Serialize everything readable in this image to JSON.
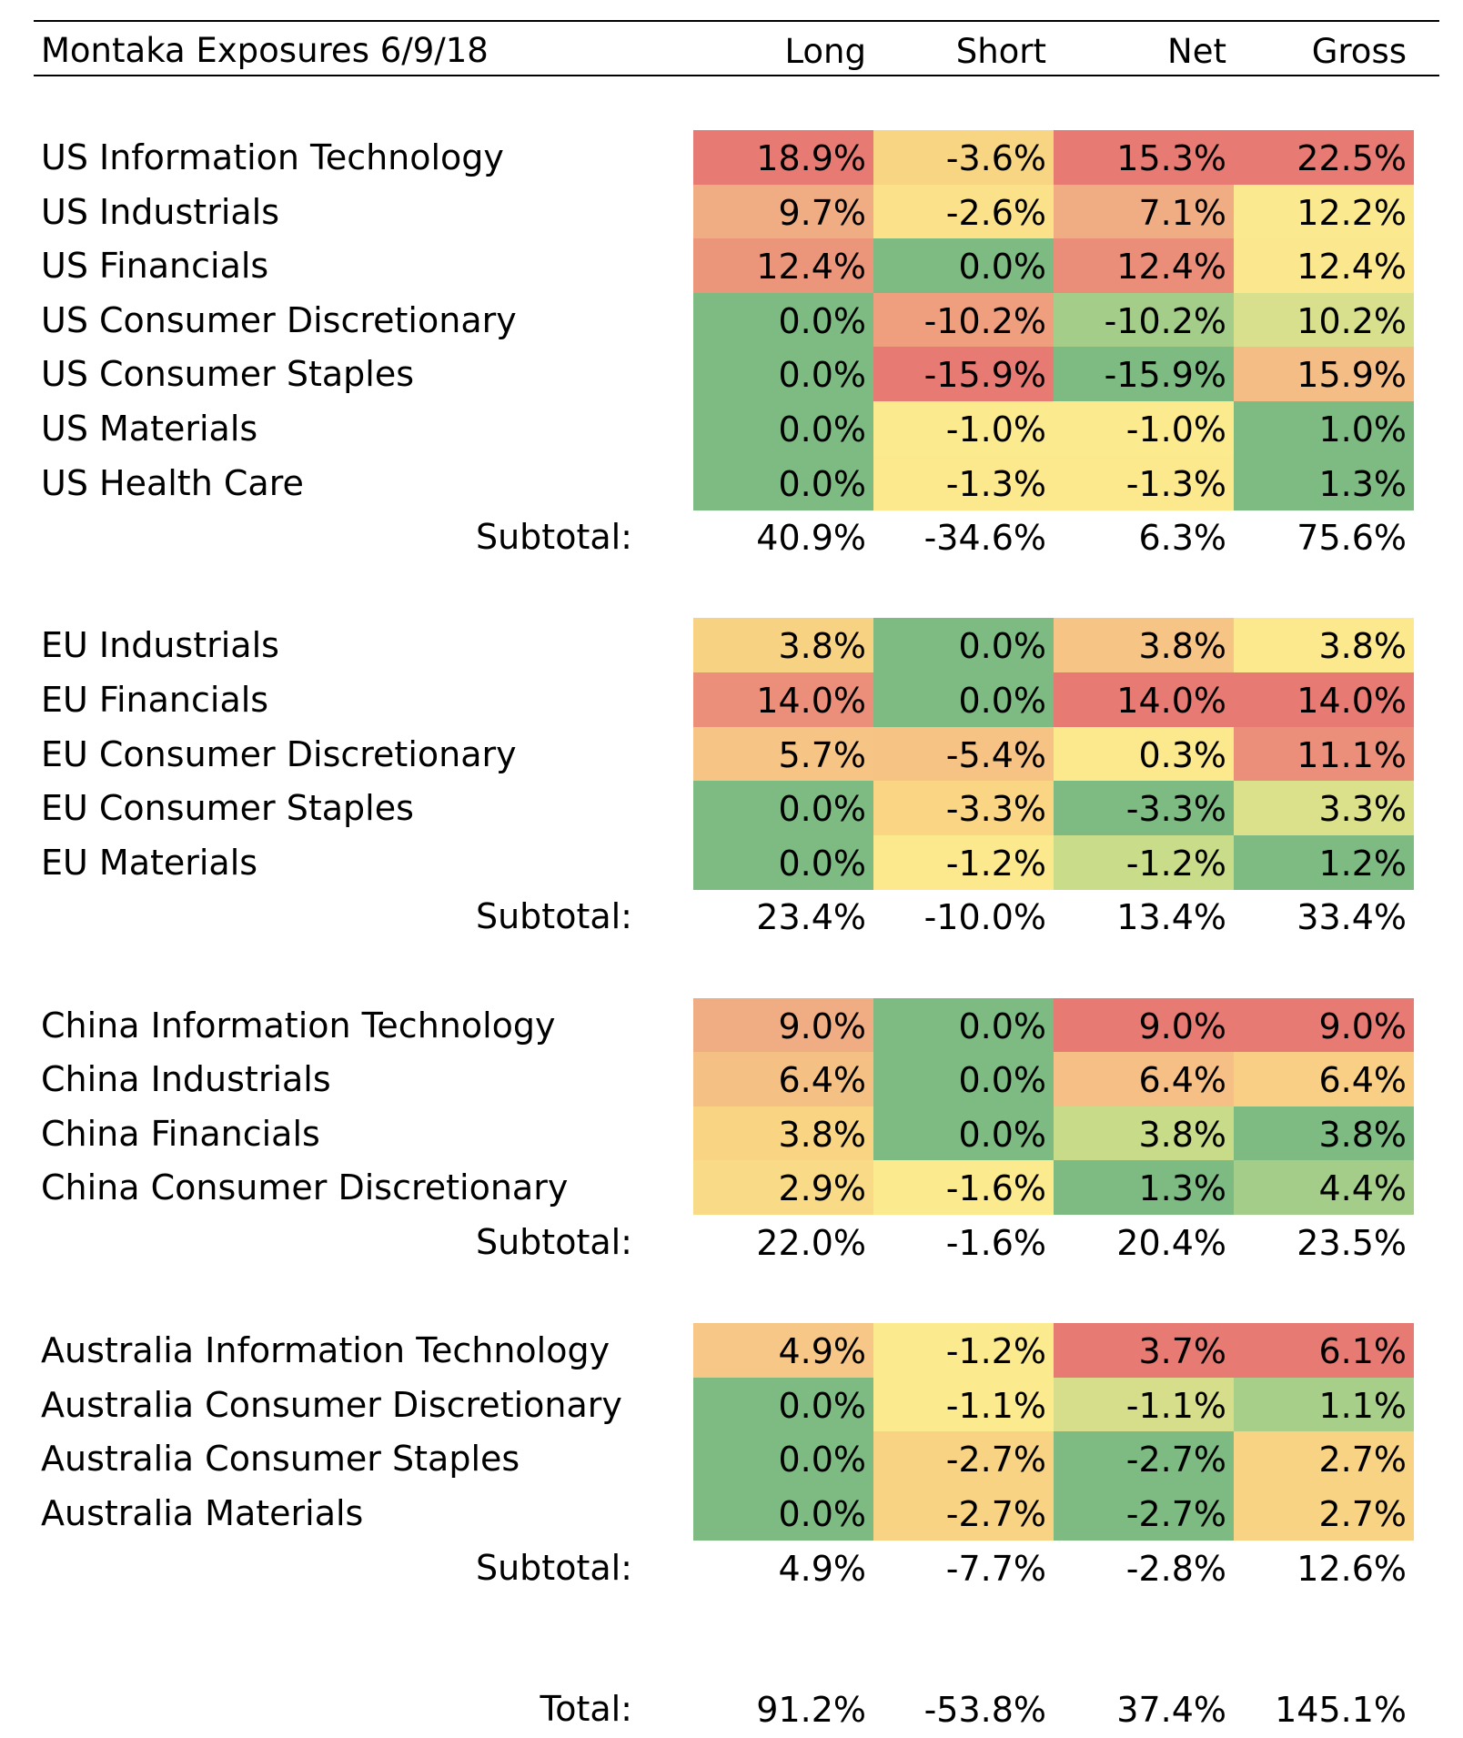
{
  "header": {
    "title": "Montaka Exposures 6/9/18",
    "columns": [
      "Long",
      "Short",
      "Net",
      "Gross"
    ]
  },
  "sections": [
    {
      "rows": [
        {
          "label": "US Information Technology",
          "values": [
            "18.9%",
            "-3.6%",
            "15.3%",
            "22.5%"
          ],
          "colors": [
            "#e77b74",
            "#f8d583",
            "#e77b74",
            "#e77b74"
          ]
        },
        {
          "label": "US Industrials",
          "values": [
            "9.7%",
            "-2.6%",
            "7.1%",
            "12.2%"
          ],
          "colors": [
            "#f0ad83",
            "#fbe28a",
            "#f0ad83",
            "#fbe98f"
          ]
        },
        {
          "label": "US Financials",
          "values": [
            "12.4%",
            "0.0%",
            "12.4%",
            "12.4%"
          ],
          "colors": [
            "#eb957b",
            "#7dbb82",
            "#ea8e7a",
            "#fbe88e"
          ]
        },
        {
          "label": "US Consumer Discretionary",
          "values": [
            "0.0%",
            "-10.2%",
            "-10.2%",
            "10.2%"
          ],
          "colors": [
            "#7dbb82",
            "#ef9f7e",
            "#a3cd89",
            "#d9e08d"
          ]
        },
        {
          "label": "US Consumer Staples",
          "values": [
            "0.0%",
            "-15.9%",
            "-15.9%",
            "15.9%"
          ],
          "colors": [
            "#7dbb82",
            "#e77b74",
            "#7dbb82",
            "#f5bd86"
          ]
        },
        {
          "label": "US Materials",
          "values": [
            "0.0%",
            "-1.0%",
            "-1.0%",
            "1.0%"
          ],
          "colors": [
            "#7dbb82",
            "#fcea8e",
            "#fcea8e",
            "#7dbb82"
          ]
        },
        {
          "label": "US Health Care",
          "values": [
            "0.0%",
            "-1.3%",
            "-1.3%",
            "1.3%"
          ],
          "colors": [
            "#7dbb82",
            "#fce88d",
            "#fce88d",
            "#7dbb82"
          ]
        }
      ],
      "subtotal": {
        "label": "Subtotal:",
        "values": [
          "40.9%",
          "-34.6%",
          "6.3%",
          "75.6%"
        ]
      }
    },
    {
      "rows": [
        {
          "label": "EU Industrials",
          "values": [
            "3.8%",
            "0.0%",
            "3.8%",
            "3.8%"
          ],
          "colors": [
            "#f8d283",
            "#7dbb82",
            "#f6c585",
            "#fce88d"
          ]
        },
        {
          "label": "EU Financials",
          "values": [
            "14.0%",
            "0.0%",
            "14.0%",
            "14.0%"
          ],
          "colors": [
            "#eb8e7a",
            "#7dbb82",
            "#e77b74",
            "#e77b74"
          ]
        },
        {
          "label": "EU Consumer Discretionary",
          "values": [
            "5.7%",
            "-5.4%",
            "0.3%",
            "11.1%"
          ],
          "colors": [
            "#f6c485",
            "#f6c385",
            "#fce98e",
            "#eb8f7a"
          ]
        },
        {
          "label": "EU Consumer Staples",
          "values": [
            "0.0%",
            "-3.3%",
            "-3.3%",
            "3.3%"
          ],
          "colors": [
            "#7dbb82",
            "#f9d584",
            "#7dbb82",
            "#dbe08b"
          ]
        },
        {
          "label": "EU Materials",
          "values": [
            "0.0%",
            "-1.2%",
            "-1.2%",
            "1.2%"
          ],
          "colors": [
            "#7dbb82",
            "#fce88d",
            "#c8dc8a",
            "#7dbb82"
          ]
        }
      ],
      "subtotal": {
        "label": "Subtotal:",
        "values": [
          "23.4%",
          "-10.0%",
          "13.4%",
          "33.4%"
        ]
      }
    },
    {
      "rows": [
        {
          "label": "China Information Technology",
          "values": [
            "9.0%",
            "0.0%",
            "9.0%",
            "9.0%"
          ],
          "colors": [
            "#f0ad83",
            "#7dbb82",
            "#e77b74",
            "#e77b74"
          ]
        },
        {
          "label": "China Industrials",
          "values": [
            "6.4%",
            "0.0%",
            "6.4%",
            "6.4%"
          ],
          "colors": [
            "#f4c084",
            "#7dbb82",
            "#f5bf86",
            "#f8cf84"
          ]
        },
        {
          "label": "China Financials",
          "values": [
            "3.8%",
            "0.0%",
            "3.8%",
            "3.8%"
          ],
          "colors": [
            "#f8d483",
            "#7dbb82",
            "#c8db89",
            "#7dbb82"
          ]
        },
        {
          "label": "China Consumer Discretionary",
          "values": [
            "2.9%",
            "-1.6%",
            "1.3%",
            "4.4%"
          ],
          "colors": [
            "#f9da86",
            "#fcea8e",
            "#7dbb82",
            "#a3cd89"
          ]
        }
      ],
      "subtotal": {
        "label": "Subtotal:",
        "values": [
          "22.0%",
          "-1.6%",
          "20.4%",
          "23.5%"
        ]
      }
    },
    {
      "rows": [
        {
          "label": "Australia Information Technology",
          "values": [
            "4.9%",
            "-1.2%",
            "3.7%",
            "6.1%"
          ],
          "colors": [
            "#f6c786",
            "#fcea8e",
            "#e77b74",
            "#e77b74"
          ]
        },
        {
          "label": "Australia Consumer Discretionary",
          "values": [
            "0.0%",
            "-1.1%",
            "-1.1%",
            "1.1%"
          ],
          "colors": [
            "#7dbb82",
            "#fcea8e",
            "#d6de8b",
            "#a8cf89"
          ]
        },
        {
          "label": "Australia Consumer Staples",
          "values": [
            "0.0%",
            "-2.7%",
            "-2.7%",
            "2.7%"
          ],
          "colors": [
            "#7dbb82",
            "#f8d384",
            "#7dbb82",
            "#f8d384"
          ]
        },
        {
          "label": "Australia Materials",
          "values": [
            "0.0%",
            "-2.7%",
            "-2.7%",
            "2.7%"
          ],
          "colors": [
            "#7dbb82",
            "#f8d384",
            "#7dbb82",
            "#f8d384"
          ]
        }
      ],
      "subtotal": {
        "label": "Subtotal:",
        "values": [
          "4.9%",
          "-7.7%",
          "-2.8%",
          "12.6%"
        ]
      }
    }
  ],
  "total": {
    "label": "Total:",
    "values": [
      "91.2%",
      "-53.8%",
      "37.4%",
      "145.1%"
    ]
  }
}
